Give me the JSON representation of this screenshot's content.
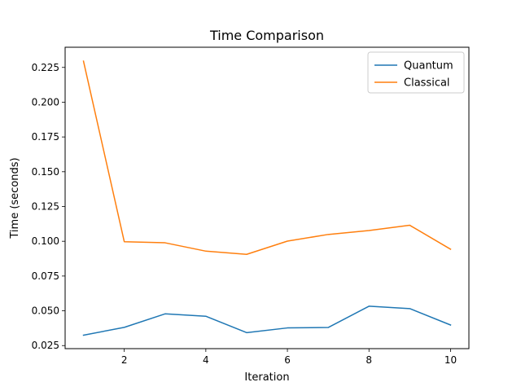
{
  "chart_data": {
    "type": "line",
    "title": "Time Comparison",
    "xlabel": "Iteration",
    "ylabel": "Time (seconds)",
    "x": [
      1,
      2,
      3,
      4,
      5,
      6,
      7,
      8,
      9,
      10
    ],
    "xlim": [
      0.55,
      10.45
    ],
    "ylim": [
      0.0228,
      0.2395
    ],
    "xticks": [
      2,
      4,
      6,
      8,
      10
    ],
    "xtick_labels": [
      "2",
      "4",
      "6",
      "8",
      "10"
    ],
    "yticks": [
      0.025,
      0.05,
      0.075,
      0.1,
      0.125,
      0.15,
      0.175,
      0.2,
      0.225
    ],
    "ytick_labels": [
      "0.025",
      "0.050",
      "0.075",
      "0.100",
      "0.125",
      "0.150",
      "0.175",
      "0.200",
      "0.225"
    ],
    "grid": false,
    "legend_position": "top-right",
    "series": [
      {
        "name": "Quantum",
        "color": "#1f77b4",
        "values": [
          0.0325,
          0.0381,
          0.0478,
          0.0461,
          0.0343,
          0.0377,
          0.038,
          0.0533,
          0.0516,
          0.0398
        ]
      },
      {
        "name": "Classical",
        "color": "#ff7f0e",
        "values": [
          0.2295,
          0.0997,
          0.0989,
          0.0929,
          0.0906,
          0.1001,
          0.1049,
          0.1077,
          0.1115,
          0.0943
        ]
      }
    ]
  }
}
